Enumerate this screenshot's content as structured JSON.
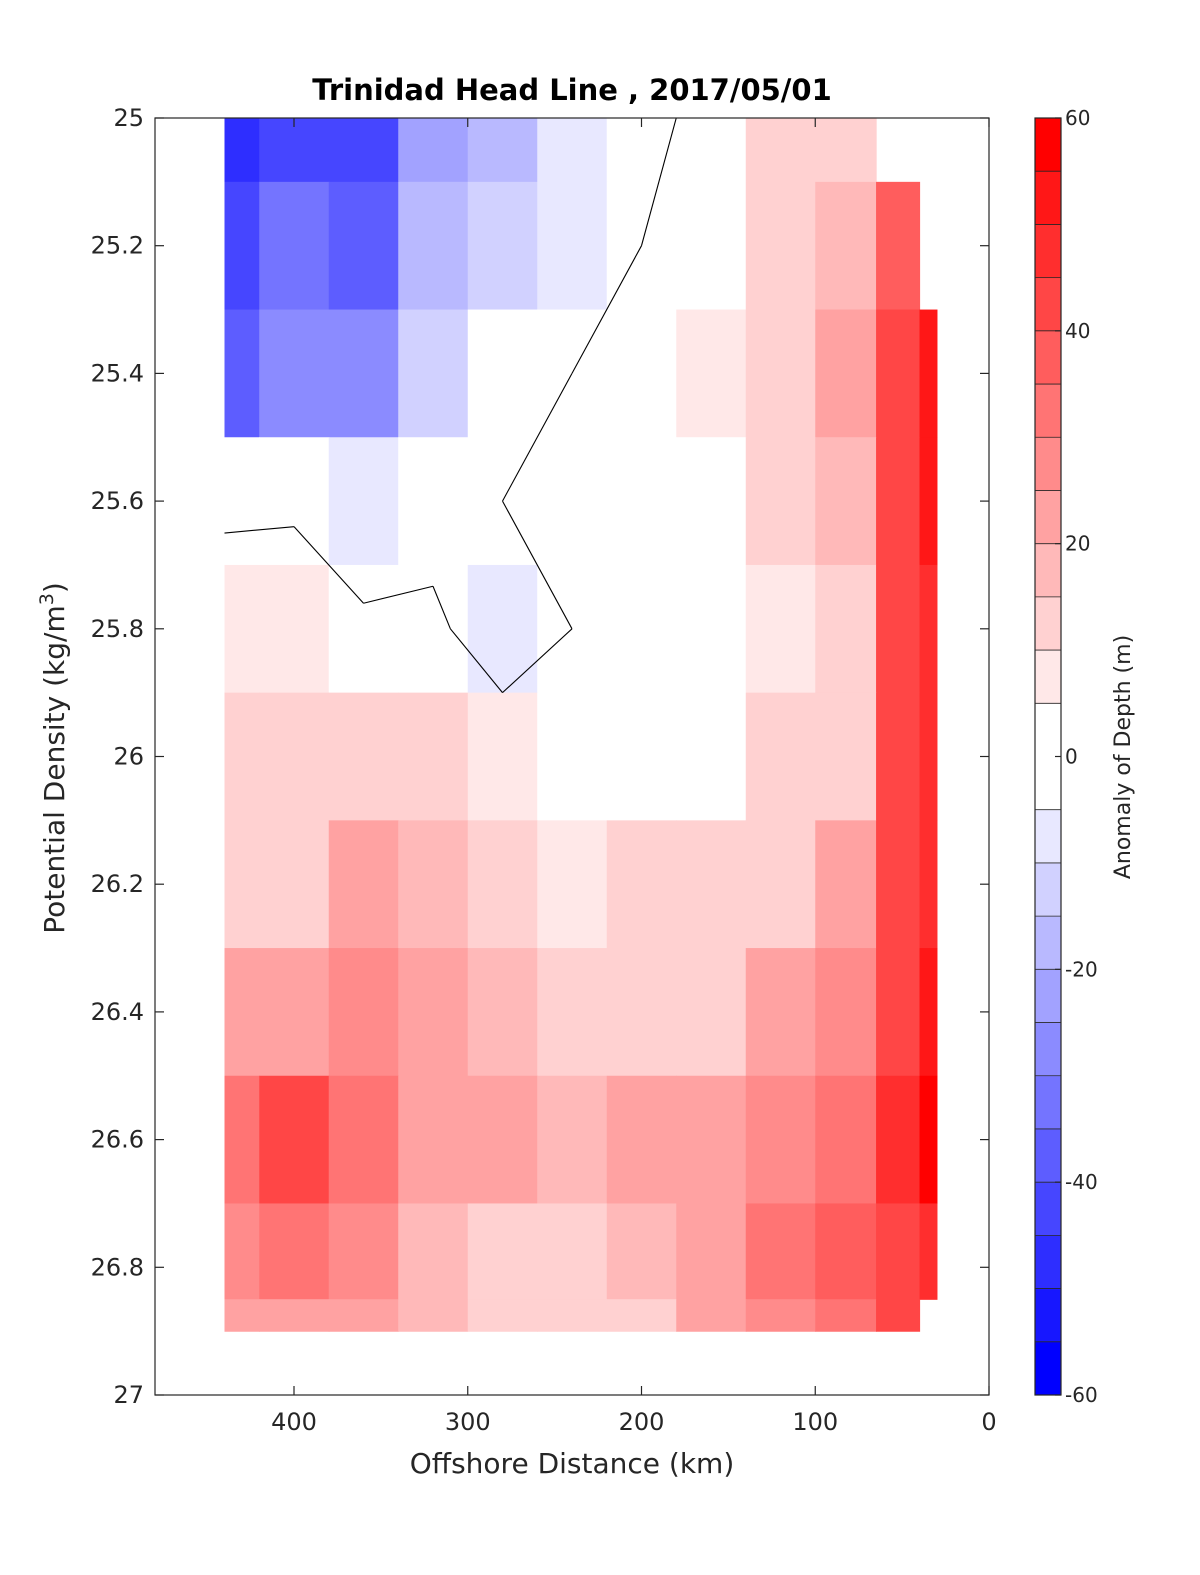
{
  "chart_data": {
    "type": "heatmap",
    "title": "Trinidad Head Line , 2017/05/01",
    "xlabel": "Offshore Distance (km)",
    "ylabel_main": "Potential Density (kg/m",
    "ylabel_sup": "3",
    "ylabel_close": ")",
    "colorbar_label": "Anomaly of Depth (m)",
    "xlim": [
      480,
      0
    ],
    "x_reversed": true,
    "ylim": [
      25,
      27
    ],
    "y_reversed": true,
    "x_ticks": [
      "400",
      "300",
      "200",
      "100",
      "0"
    ],
    "x_tick_values": [
      400,
      300,
      200,
      100,
      0
    ],
    "y_ticks": [
      "25",
      "25.2",
      "25.4",
      "25.6",
      "25.8",
      "26",
      "26.2",
      "26.4",
      "26.6",
      "26.8",
      "27"
    ],
    "y_tick_values": [
      25,
      25.2,
      25.4,
      25.6,
      25.8,
      26,
      26.2,
      26.4,
      26.6,
      26.8,
      27
    ],
    "colorbar": {
      "clim": [
        -60,
        60
      ],
      "ticks": [
        "60",
        "40",
        "20",
        "0",
        "-20",
        "-40",
        "-60"
      ],
      "tick_values": [
        60,
        40,
        20,
        0,
        -20,
        -40,
        -60
      ],
      "levels": [
        -60,
        -55,
        -50,
        -45,
        -40,
        -35,
        -30,
        -25,
        -20,
        -15,
        -10,
        -5,
        5,
        10,
        15,
        20,
        25,
        30,
        35,
        40,
        45,
        50,
        55,
        60
      ]
    },
    "grid": false,
    "x": [
      440,
      400,
      360,
      320,
      280,
      240,
      200,
      160,
      120,
      80,
      50,
      30
    ],
    "y": [
      25.0,
      25.2,
      25.4,
      25.6,
      25.8,
      26.0,
      26.2,
      26.4,
      26.6,
      26.8,
      26.9
    ],
    "z": [
      [
        -48,
        -40,
        -42,
        -22,
        -16,
        -8,
        -2,
        2,
        10,
        12,
        null,
        null
      ],
      [
        -42,
        -30,
        -38,
        -18,
        -10,
        -6,
        0,
        4,
        12,
        18,
        36,
        null
      ],
      [
        -38,
        -26,
        -28,
        -12,
        -4,
        0,
        2,
        8,
        14,
        20,
        42,
        54
      ],
      [
        -2,
        -2,
        -8,
        -4,
        0,
        0,
        0,
        4,
        12,
        16,
        40,
        50
      ],
      [
        6,
        8,
        2,
        2,
        -6,
        0,
        0,
        0,
        8,
        12,
        40,
        48
      ],
      [
        10,
        10,
        12,
        10,
        6,
        2,
        4,
        4,
        10,
        14,
        40,
        46
      ],
      [
        12,
        14,
        20,
        16,
        10,
        8,
        10,
        10,
        14,
        20,
        42,
        46
      ],
      [
        22,
        22,
        26,
        20,
        16,
        14,
        14,
        14,
        20,
        28,
        44,
        50
      ],
      [
        32,
        40,
        32,
        24,
        20,
        18,
        20,
        22,
        26,
        32,
        46,
        56
      ],
      [
        26,
        32,
        28,
        18,
        14,
        12,
        16,
        24,
        30,
        36,
        44,
        46
      ],
      [
        22,
        24,
        22,
        16,
        10,
        10,
        14,
        20,
        28,
        32,
        40,
        null
      ]
    ]
  }
}
